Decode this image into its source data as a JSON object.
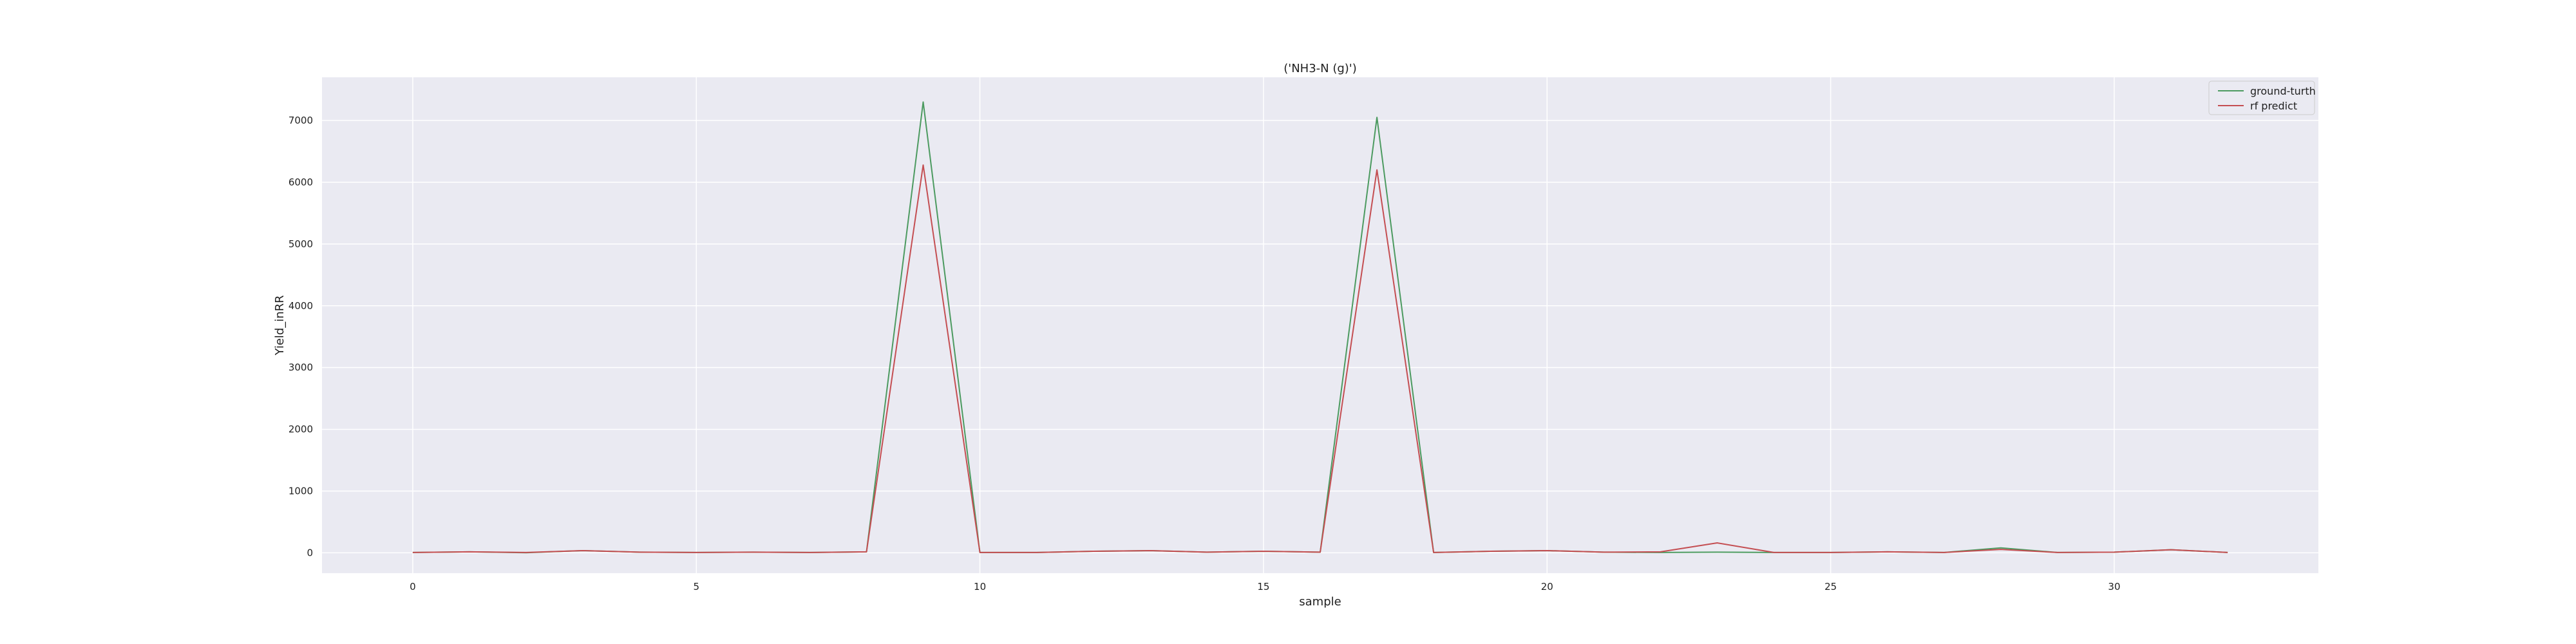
{
  "chart_data": {
    "type": "line",
    "title": "('NH3-N (g)')",
    "xlabel": "sample",
    "ylabel": "Yield_inRR",
    "xlim": [
      -1.6,
      33.6
    ],
    "ylim": [
      -330,
      7700
    ],
    "xticks": [
      0,
      5,
      10,
      15,
      20,
      25,
      30
    ],
    "yticks": [
      0,
      1000,
      2000,
      3000,
      4000,
      5000,
      6000,
      7000
    ],
    "grid": true,
    "legend_position": "top-right",
    "x": [
      0,
      1,
      2,
      3,
      4,
      5,
      6,
      7,
      8,
      9,
      10,
      11,
      12,
      13,
      14,
      15,
      16,
      17,
      18,
      19,
      20,
      21,
      22,
      23,
      24,
      25,
      26,
      27,
      28,
      29,
      30,
      31,
      32
    ],
    "series": [
      {
        "name": "ground-turth",
        "color": "#4c9a60",
        "values": [
          5,
          15,
          2,
          35,
          10,
          5,
          10,
          5,
          15,
          7300,
          5,
          5,
          25,
          35,
          10,
          25,
          10,
          7050,
          5,
          25,
          35,
          10,
          5,
          10,
          5,
          5,
          15,
          5,
          80,
          5,
          10,
          50,
          5
        ]
      },
      {
        "name": "rf predict",
        "color": "#c44e52",
        "values": [
          5,
          15,
          5,
          35,
          10,
          5,
          10,
          5,
          15,
          6280,
          5,
          5,
          25,
          35,
          10,
          25,
          10,
          6200,
          5,
          25,
          35,
          10,
          15,
          160,
          5,
          5,
          15,
          5,
          55,
          5,
          10,
          50,
          5
        ]
      }
    ]
  }
}
